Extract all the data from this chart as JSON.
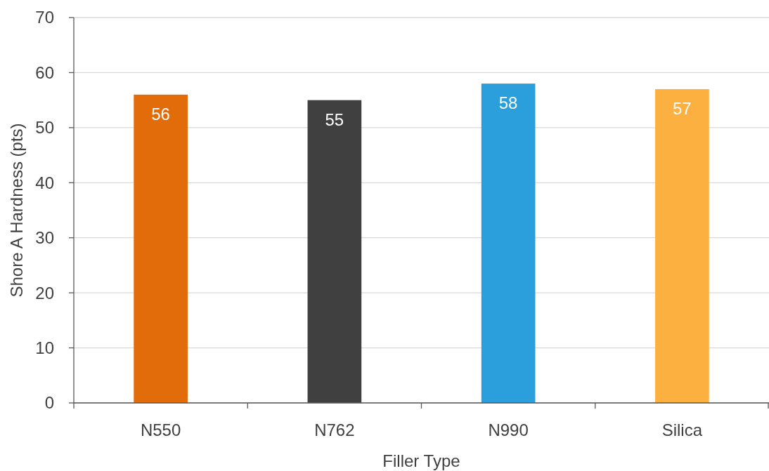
{
  "chart_data": {
    "type": "bar",
    "xlabel": "Filler Type",
    "ylabel": "Shore A Hardness (pts)",
    "categories": [
      "N550",
      "N762",
      "N990",
      "Silica"
    ],
    "values": [
      56,
      55,
      58,
      57
    ],
    "colors": [
      "#e36c0a",
      "#404040",
      "#2a9fdb",
      "#fbb040"
    ],
    "ylim": [
      0,
      70
    ],
    "yticks": [
      0,
      10,
      20,
      30,
      40,
      50,
      60,
      70
    ],
    "grid": "y",
    "data_labels": true
  }
}
